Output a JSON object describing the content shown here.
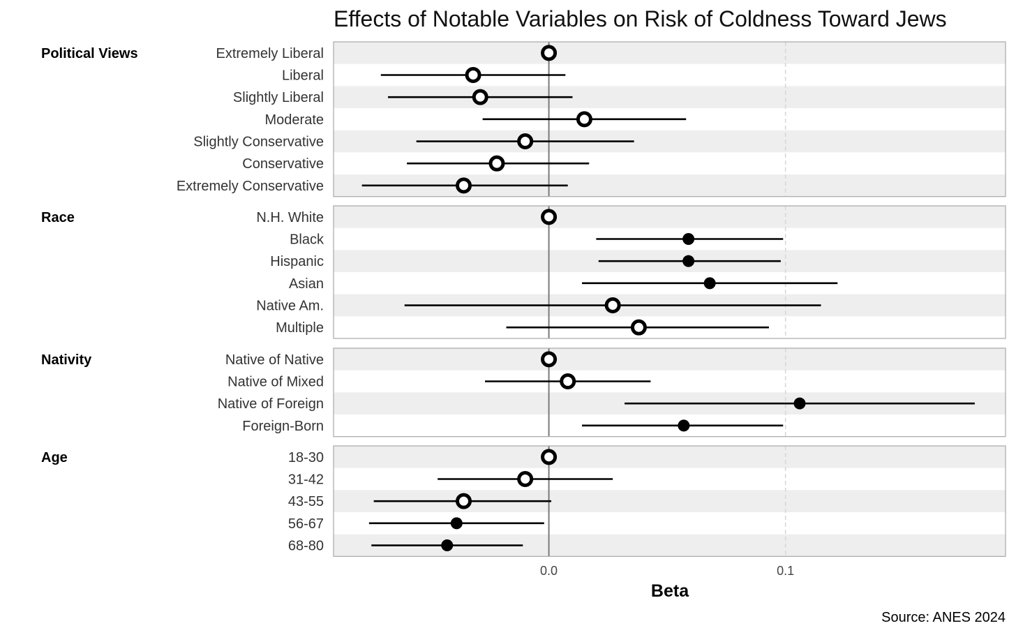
{
  "chart_data": {
    "type": "scatter",
    "subtype": "coefficient-plot",
    "title": "Effects of Notable Variables on Risk of Coldness Toward Jews",
    "xlabel": "Beta",
    "ylabel": "",
    "caption": "Source: ANES 2024",
    "xlim": [
      -0.091,
      0.193
    ],
    "x_ticks": [
      0.0,
      0.1
    ],
    "x_tick_labels": [
      "0.0",
      "0.1"
    ],
    "reference_line": 0.0,
    "grid": "vertical dashed at ticks; alternating grey row bands",
    "marker_legend": {
      "hollow": "ring marker",
      "filled": "solid marker"
    },
    "groups": [
      {
        "label": "Political Views",
        "rows": [
          {
            "label": "Extremely Liberal",
            "beta": 0.0,
            "low": null,
            "high": null,
            "filled": false
          },
          {
            "label": "Liberal",
            "beta": -0.032,
            "low": -0.071,
            "high": 0.007,
            "filled": false
          },
          {
            "label": "Slightly Liberal",
            "beta": -0.029,
            "low": -0.068,
            "high": 0.01,
            "filled": false
          },
          {
            "label": "Moderate",
            "beta": 0.015,
            "low": -0.028,
            "high": 0.058,
            "filled": false
          },
          {
            "label": "Slightly Conservative",
            "beta": -0.01,
            "low": -0.056,
            "high": 0.036,
            "filled": false
          },
          {
            "label": "Conservative",
            "beta": -0.022,
            "low": -0.06,
            "high": 0.017,
            "filled": false
          },
          {
            "label": "Extremely Conservative",
            "beta": -0.036,
            "low": -0.079,
            "high": 0.008,
            "filled": false
          }
        ]
      },
      {
        "label": "Race",
        "rows": [
          {
            "label": "N.H. White",
            "beta": 0.0,
            "low": null,
            "high": null,
            "filled": false
          },
          {
            "label": "Black",
            "beta": 0.059,
            "low": 0.02,
            "high": 0.099,
            "filled": true
          },
          {
            "label": "Hispanic",
            "beta": 0.059,
            "low": 0.021,
            "high": 0.098,
            "filled": true
          },
          {
            "label": "Asian",
            "beta": 0.068,
            "low": 0.014,
            "high": 0.122,
            "filled": true
          },
          {
            "label": "Native Am.",
            "beta": 0.027,
            "low": -0.061,
            "high": 0.115,
            "filled": false
          },
          {
            "label": "Multiple",
            "beta": 0.038,
            "low": -0.018,
            "high": 0.093,
            "filled": false
          }
        ]
      },
      {
        "label": "Nativity",
        "rows": [
          {
            "label": "Native of Native",
            "beta": 0.0,
            "low": null,
            "high": null,
            "filled": false
          },
          {
            "label": "Native of Mixed",
            "beta": 0.008,
            "low": -0.027,
            "high": 0.043,
            "filled": false
          },
          {
            "label": "Native of Foreign",
            "beta": 0.106,
            "low": 0.032,
            "high": 0.18,
            "filled": true
          },
          {
            "label": "Foreign-Born",
            "beta": 0.057,
            "low": 0.014,
            "high": 0.099,
            "filled": true
          }
        ]
      },
      {
        "label": "Age",
        "rows": [
          {
            "label": "18-30",
            "beta": 0.0,
            "low": null,
            "high": null,
            "filled": false
          },
          {
            "label": "31-42",
            "beta": -0.01,
            "low": -0.047,
            "high": 0.027,
            "filled": false
          },
          {
            "label": "43-55",
            "beta": -0.036,
            "low": -0.074,
            "high": 0.001,
            "filled": false
          },
          {
            "label": "56-67",
            "beta": -0.039,
            "low": -0.076,
            "high": -0.002,
            "filled": true
          },
          {
            "label": "68-80",
            "beta": -0.043,
            "low": -0.075,
            "high": -0.011,
            "filled": true
          }
        ]
      }
    ]
  }
}
